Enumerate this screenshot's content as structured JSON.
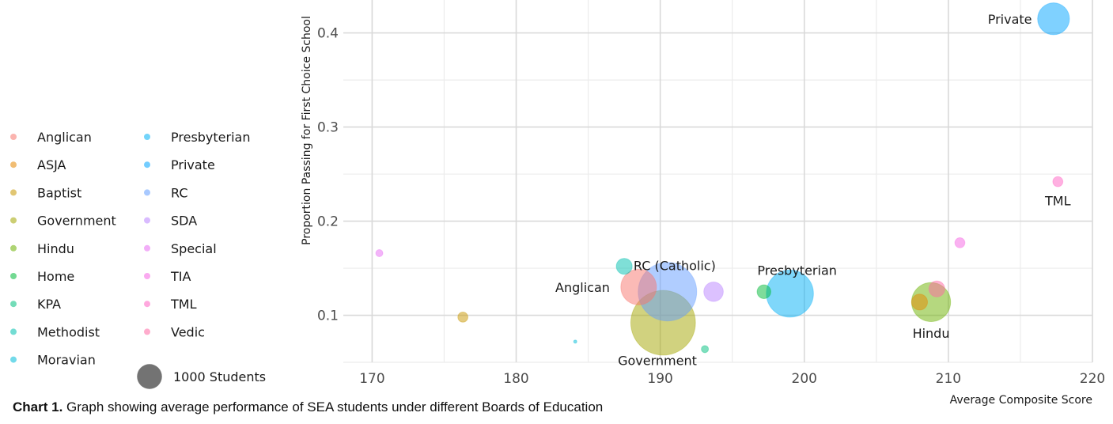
{
  "chart_data": {
    "type": "scatter",
    "xlabel": "Average Composite Score",
    "ylabel": "Proportion Passing for First Choice School",
    "xlim": [
      168,
      220
    ],
    "ylim": [
      0.05,
      0.435
    ],
    "x_ticks": [
      170,
      180,
      190,
      200,
      210,
      220
    ],
    "y_ticks": [
      0.1,
      0.2,
      0.3,
      0.4
    ],
    "grid": true,
    "legend_position": "left",
    "legend": [
      {
        "name": "Anglican",
        "color": "#F8766D"
      },
      {
        "name": "ASJA",
        "color": "#E58700"
      },
      {
        "name": "Baptist",
        "color": "#C99800"
      },
      {
        "name": "Government",
        "color": "#A3A500"
      },
      {
        "name": "Hindu",
        "color": "#6BB100"
      },
      {
        "name": "Home",
        "color": "#00BA38"
      },
      {
        "name": "KPA",
        "color": "#00BF7D"
      },
      {
        "name": "Methodist",
        "color": "#00C0AF"
      },
      {
        "name": "Moravian",
        "color": "#00BCD8"
      },
      {
        "name": "Presbyterian",
        "color": "#00B0F6"
      },
      {
        "name": "Private",
        "color": "#00A4FF"
      },
      {
        "name": "RC",
        "color": "#619CFF"
      },
      {
        "name": "SDA",
        "color": "#B983FF"
      },
      {
        "name": "Special",
        "color": "#E76BF3"
      },
      {
        "name": "TIA",
        "color": "#F564E3"
      },
      {
        "name": "TML",
        "color": "#FF61C3"
      },
      {
        "name": "Vedic",
        "color": "#FF67A4"
      }
    ],
    "size_legend": {
      "label": "1000 Students",
      "students": 1000
    },
    "points": [
      {
        "board": "Anglican",
        "x": 188.5,
        "y": 0.13,
        "students": 1000,
        "color": "#F8766D"
      },
      {
        "board": "ASJA",
        "x": 208.0,
        "y": 0.114,
        "students": 200,
        "color": "#E58700"
      },
      {
        "board": "Baptist",
        "x": 176.3,
        "y": 0.098,
        "students": 80,
        "color": "#C99800"
      },
      {
        "board": "Government",
        "x": 190.2,
        "y": 0.092,
        "students": 3300,
        "color": "#A3A500"
      },
      {
        "board": "Hindu",
        "x": 208.8,
        "y": 0.114,
        "students": 1200,
        "color": "#6BB100"
      },
      {
        "board": "Home",
        "x": 197.2,
        "y": 0.125,
        "students": 150,
        "color": "#00BA38"
      },
      {
        "board": "KPA",
        "x": 193.1,
        "y": 0.064,
        "students": 40,
        "color": "#00BF7D"
      },
      {
        "board": "Methodist",
        "x": 187.5,
        "y": 0.152,
        "students": 200,
        "color": "#00C0AF"
      },
      {
        "board": "Moravian",
        "x": 184.1,
        "y": 0.072,
        "students": 8,
        "color": "#00BCD8"
      },
      {
        "board": "Presbyterian",
        "x": 199.0,
        "y": 0.123,
        "students": 1750,
        "color": "#00B0F6"
      },
      {
        "board": "Private",
        "x": 217.3,
        "y": 0.415,
        "students": 800,
        "color": "#00A4FF"
      },
      {
        "board": "RC",
        "x": 190.5,
        "y": 0.125,
        "students": 2700,
        "color": "#619CFF"
      },
      {
        "board": "SDA",
        "x": 193.7,
        "y": 0.125,
        "students": 300,
        "color": "#B983FF"
      },
      {
        "board": "Special",
        "x": 170.5,
        "y": 0.166,
        "students": 40,
        "color": "#E76BF3"
      },
      {
        "board": "TIA",
        "x": 210.8,
        "y": 0.177,
        "students": 80,
        "color": "#F564E3"
      },
      {
        "board": "TML",
        "x": 217.6,
        "y": 0.242,
        "students": 80,
        "color": "#FF61C3"
      },
      {
        "board": "Vedic",
        "x": 209.2,
        "y": 0.128,
        "students": 200,
        "color": "#FF67A4"
      }
    ],
    "annotations": [
      {
        "text": "Private",
        "x": 215.8,
        "y": 0.415,
        "anchor": "end"
      },
      {
        "text": "TML",
        "x": 217.6,
        "y": 0.222,
        "anchor": "middle"
      },
      {
        "text": "RC (Catholic)",
        "x": 191.0,
        "y": 0.153,
        "anchor": "middle"
      },
      {
        "text": "Presbyterian",
        "x": 199.5,
        "y": 0.148,
        "anchor": "middle"
      },
      {
        "text": "Anglican",
        "x": 186.5,
        "y": 0.13,
        "anchor": "end"
      },
      {
        "text": "Hindu",
        "x": 208.8,
        "y": 0.081,
        "anchor": "middle"
      },
      {
        "text": "Government",
        "x": 189.8,
        "y": 0.052,
        "anchor": "middle"
      }
    ]
  },
  "caption": {
    "bold": "Chart 1.",
    "text": " Graph showing average performance of SEA students under different Boards of Education"
  }
}
